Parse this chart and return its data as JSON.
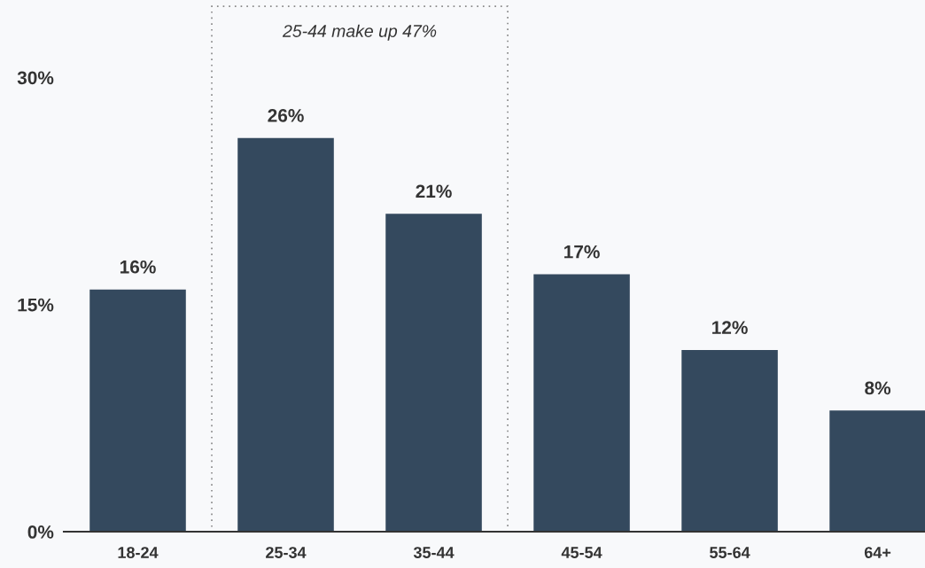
{
  "chart_data": {
    "type": "bar",
    "categories": [
      "18-24",
      "25-34",
      "35-44",
      "45-54",
      "55-64",
      "64+"
    ],
    "values": [
      16,
      26,
      21,
      17,
      12,
      8
    ],
    "value_labels": [
      "16%",
      "26%",
      "21%",
      "17%",
      "12%",
      "8%"
    ],
    "color": "#34495e",
    "ylim": [
      0,
      35
    ],
    "yticks": [
      {
        "value": 0,
        "label": "0%"
      },
      {
        "value": 15,
        "label": "15%"
      },
      {
        "value": 30,
        "label": "30%"
      }
    ],
    "grid": false,
    "annotations": [
      "25-44 make up 47%"
    ]
  }
}
